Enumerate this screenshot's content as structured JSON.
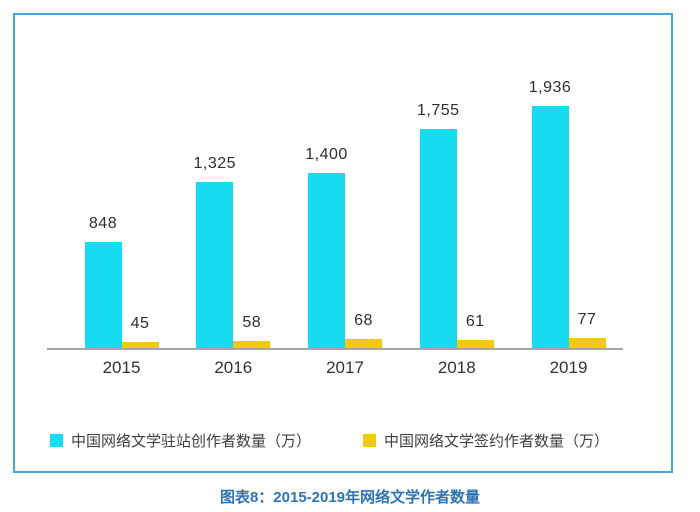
{
  "caption": "图表8：2015-2019年网络文学作者数量",
  "colors": {
    "frame_border": "#42A9DC",
    "axis_line": "#A6A6A6",
    "caption_text": "#2E74B5",
    "label_text": "#2f2f2f"
  },
  "chart_data": {
    "type": "bar",
    "title": "",
    "categories": [
      "2015",
      "2016",
      "2017",
      "2018",
      "2019"
    ],
    "series": [
      {
        "name": "中国网络文学驻站创作者数量（万）",
        "color": "#17DBF0",
        "values": [
          848,
          1325,
          1400,
          1755,
          1936
        ],
        "labels": [
          "848",
          "1,325",
          "1,400",
          "1,755",
          "1,936"
        ]
      },
      {
        "name": "中国网络文学签约作者数量（万）",
        "color": "#F2C811",
        "values": [
          45,
          58,
          68,
          61,
          77
        ],
        "labels": [
          "45",
          "58",
          "68",
          "61",
          "77"
        ]
      }
    ],
    "xlabel": "",
    "ylabel": "",
    "ylim": [
      0,
      2000
    ],
    "grid": false,
    "legend_position": "bottom"
  }
}
